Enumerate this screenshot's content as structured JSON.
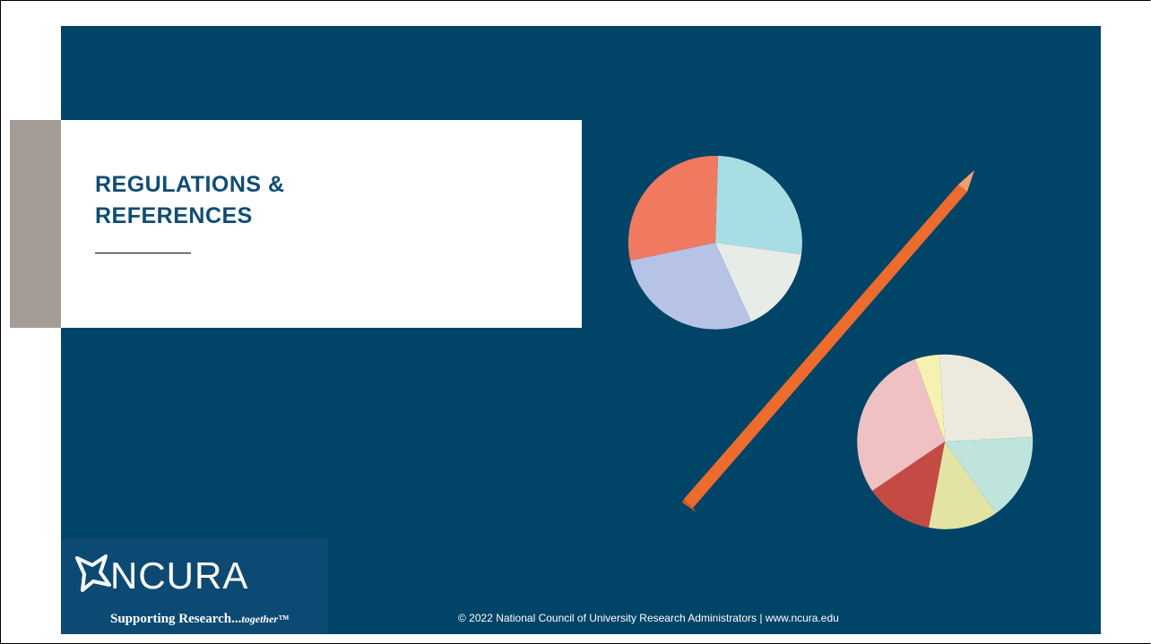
{
  "slide": {
    "title": "REGULATIONS & REFERENCES",
    "footer": "© 2022 National Council of University Research Administrators | www.ncura.edu"
  },
  "logo": {
    "name": "NCURA",
    "tagline": [
      "Supporting Research...",
      "together™"
    ]
  }
}
